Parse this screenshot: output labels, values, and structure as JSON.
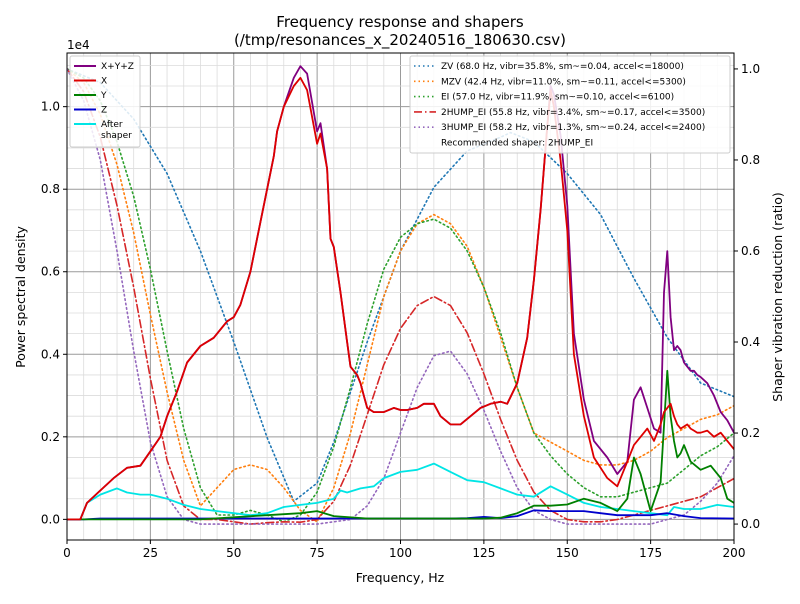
{
  "chart_data": {
    "type": "line",
    "title": "Frequency response and shapers\n(/tmp/resonances_x_20240516_180630.csv)",
    "title_lines": [
      "Frequency response and shapers",
      "(/tmp/resonances_x_20240516_180630.csv)"
    ],
    "xlabel": "Frequency, Hz",
    "ylabel": "Power spectral density",
    "y2label": "Shaper vibration reduction (ratio)",
    "y_offset_text": "1e4",
    "xlim": [
      0,
      200
    ],
    "ylim": [
      -0.05,
      1.13
    ],
    "y2lim": [
      -0.035,
      1.035
    ],
    "x_ticks": [
      0,
      25,
      50,
      75,
      100,
      125,
      150,
      175,
      200
    ],
    "y_ticks": [
      0.0,
      0.2,
      0.4,
      0.6,
      0.8,
      1.0
    ],
    "y_tick_labels": [
      "0.0",
      "0.2",
      "0.4",
      "0.6",
      "0.8",
      "1.0"
    ],
    "y2_ticks": [
      0.0,
      0.2,
      0.4,
      0.6,
      0.8,
      1.0
    ],
    "y2_tick_labels": [
      "0.0",
      "0.2",
      "0.4",
      "0.6",
      "0.8",
      "1.0"
    ],
    "grid": true,
    "legend_left_placement": "top-left",
    "legend_right_placement": "top-right",
    "psd_series": [
      {
        "name": "X+Y+Z",
        "color": "#800080",
        "style": "solid",
        "x": [
          0,
          4,
          6,
          10,
          14,
          18,
          22,
          25,
          28,
          30,
          33,
          36,
          40,
          44,
          48,
          50,
          52,
          55,
          58,
          60,
          62,
          63,
          65,
          68,
          70,
          72,
          75,
          76,
          78,
          79,
          80,
          82,
          84,
          85,
          86,
          87,
          88,
          89,
          90,
          92,
          95,
          98,
          100,
          102,
          105,
          107,
          110,
          112,
          115,
          118,
          121,
          124,
          127,
          130,
          132,
          135,
          138,
          140,
          142,
          144,
          145,
          146,
          148,
          150,
          152,
          155,
          158,
          162,
          165,
          168,
          170,
          172,
          174,
          176,
          178,
          179,
          180,
          181,
          182,
          183,
          184,
          185,
          186,
          187,
          188,
          189,
          190,
          192,
          194,
          196,
          198,
          200
        ],
        "y": [
          0,
          0,
          0.04,
          0.07,
          0.1,
          0.125,
          0.13,
          0.165,
          0.2,
          0.25,
          0.31,
          0.38,
          0.42,
          0.44,
          0.48,
          0.49,
          0.52,
          0.6,
          0.72,
          0.8,
          0.88,
          0.94,
          1.0,
          1.07,
          1.098,
          1.08,
          0.94,
          0.96,
          0.85,
          0.68,
          0.66,
          0.55,
          0.43,
          0.37,
          0.36,
          0.35,
          0.33,
          0.3,
          0.27,
          0.26,
          0.26,
          0.27,
          0.265,
          0.265,
          0.27,
          0.28,
          0.28,
          0.25,
          0.23,
          0.23,
          0.25,
          0.27,
          0.28,
          0.285,
          0.28,
          0.33,
          0.44,
          0.58,
          0.75,
          0.95,
          1.05,
          1.03,
          0.93,
          0.76,
          0.45,
          0.29,
          0.19,
          0.15,
          0.11,
          0.14,
          0.29,
          0.32,
          0.27,
          0.22,
          0.21,
          0.55,
          0.65,
          0.49,
          0.41,
          0.42,
          0.41,
          0.38,
          0.37,
          0.36,
          0.36,
          0.35,
          0.345,
          0.33,
          0.3,
          0.26,
          0.24,
          0.21
        ]
      },
      {
        "name": "X",
        "color": "#dd0000",
        "style": "solid",
        "x": [
          0,
          4,
          6,
          10,
          14,
          18,
          22,
          25,
          28,
          30,
          33,
          36,
          40,
          44,
          48,
          50,
          52,
          55,
          58,
          60,
          62,
          63,
          65,
          68,
          70,
          72,
          75,
          76,
          78,
          79,
          80,
          82,
          84,
          85,
          86,
          87,
          88,
          89,
          90,
          92,
          95,
          98,
          100,
          102,
          105,
          107,
          110,
          112,
          115,
          118,
          121,
          124,
          127,
          130,
          132,
          135,
          138,
          140,
          142,
          144,
          145,
          146,
          148,
          150,
          152,
          155,
          158,
          162,
          165,
          168,
          170,
          172,
          174,
          176,
          178,
          179,
          180,
          181,
          182,
          183,
          184,
          185,
          186,
          187,
          188,
          189,
          190,
          192,
          194,
          196,
          198,
          200
        ],
        "y": [
          0,
          0,
          0.04,
          0.07,
          0.1,
          0.125,
          0.13,
          0.165,
          0.2,
          0.25,
          0.31,
          0.38,
          0.42,
          0.44,
          0.48,
          0.49,
          0.52,
          0.6,
          0.72,
          0.8,
          0.88,
          0.94,
          1.0,
          1.05,
          1.07,
          1.04,
          0.91,
          0.935,
          0.85,
          0.68,
          0.66,
          0.55,
          0.43,
          0.37,
          0.36,
          0.35,
          0.33,
          0.3,
          0.27,
          0.26,
          0.26,
          0.27,
          0.265,
          0.265,
          0.27,
          0.28,
          0.28,
          0.25,
          0.23,
          0.23,
          0.25,
          0.27,
          0.28,
          0.285,
          0.28,
          0.33,
          0.44,
          0.58,
          0.75,
          0.95,
          1.04,
          1.0,
          0.87,
          0.7,
          0.4,
          0.25,
          0.15,
          0.1,
          0.08,
          0.14,
          0.18,
          0.2,
          0.22,
          0.19,
          0.23,
          0.26,
          0.27,
          0.28,
          0.25,
          0.23,
          0.22,
          0.225,
          0.23,
          0.22,
          0.215,
          0.21,
          0.21,
          0.215,
          0.2,
          0.21,
          0.19,
          0.17
        ]
      },
      {
        "name": "Y",
        "color": "#008000",
        "style": "solid",
        "x": [
          0,
          5,
          10,
          20,
          40,
          60,
          70,
          75,
          80,
          90,
          100,
          110,
          120,
          125,
          130,
          135,
          140,
          145,
          150,
          155,
          160,
          165,
          168,
          170,
          172,
          175,
          178,
          180,
          181,
          182,
          183,
          184,
          185,
          187,
          190,
          193,
          196,
          198,
          200
        ],
        "y": [
          0,
          0,
          0,
          0,
          0,
          0.01,
          0.015,
          0.02,
          0.008,
          0.002,
          0.002,
          0.002,
          0.002,
          0.002,
          0.004,
          0.015,
          0.033,
          0.033,
          0.036,
          0.05,
          0.04,
          0.02,
          0.05,
          0.15,
          0.11,
          0.02,
          0.09,
          0.36,
          0.25,
          0.19,
          0.15,
          0.16,
          0.18,
          0.14,
          0.12,
          0.13,
          0.1,
          0.05,
          0.04
        ]
      },
      {
        "name": "Z",
        "color": "#0000cc",
        "style": "solid",
        "x": [
          0,
          5,
          10,
          40,
          100,
          110,
          115,
          120,
          125,
          130,
          135,
          140,
          145,
          150,
          155,
          160,
          165,
          170,
          175,
          180,
          185,
          190,
          200
        ],
        "y": [
          0,
          0,
          0.002,
          0.002,
          0.002,
          0.002,
          0.002,
          0.003,
          0.006,
          0.003,
          0.008,
          0.022,
          0.02,
          0.02,
          0.02,
          0.015,
          0.01,
          0.01,
          0.01,
          0.015,
          0.008,
          0.003,
          0.002
        ]
      },
      {
        "name": "After\nshaper",
        "color": "#00e5e5",
        "style": "solid",
        "x": [
          0,
          4,
          6,
          10,
          15,
          18,
          22,
          25,
          30,
          35,
          40,
          45,
          50,
          55,
          60,
          65,
          70,
          75,
          80,
          82,
          84,
          88,
          92,
          95,
          100,
          105,
          110,
          115,
          120,
          125,
          130,
          135,
          140,
          145,
          150,
          155,
          160,
          165,
          170,
          175,
          180,
          182,
          185,
          190,
          195,
          200
        ],
        "y": [
          0,
          0,
          0.04,
          0.06,
          0.075,
          0.065,
          0.06,
          0.06,
          0.05,
          0.035,
          0.025,
          0.02,
          0.015,
          0.01,
          0.015,
          0.03,
          0.035,
          0.04,
          0.05,
          0.07,
          0.065,
          0.075,
          0.08,
          0.1,
          0.115,
          0.12,
          0.135,
          0.115,
          0.095,
          0.09,
          0.075,
          0.06,
          0.055,
          0.08,
          0.06,
          0.04,
          0.03,
          0.025,
          0.02,
          0.015,
          0.01,
          0.03,
          0.025,
          0.025,
          0.035,
          0.03
        ]
      }
    ],
    "shaper_series": [
      {
        "name": "ZV (68.0 Hz, vibr=35.8%, sm~=0.04, accel<=18000)",
        "color": "#1f77b4",
        "style": "dotted",
        "x": [
          0,
          10,
          20,
          30,
          40,
          50,
          60,
          68,
          75,
          80,
          90,
          100,
          110,
          120,
          130,
          133,
          140,
          150,
          160,
          170,
          180,
          190,
          200
        ],
        "y": [
          1.0,
          0.97,
          0.89,
          0.77,
          0.6,
          0.4,
          0.19,
          0.05,
          0.09,
          0.18,
          0.4,
          0.6,
          0.74,
          0.82,
          0.85,
          0.86,
          0.84,
          0.77,
          0.68,
          0.54,
          0.41,
          0.31,
          0.28
        ]
      },
      {
        "name": "MZV (42.4 Hz, vibr=11.0%, sm~=0.11, accel<=5300)",
        "color": "#ff7f0e",
        "style": "dotted",
        "x": [
          0,
          5,
          10,
          15,
          20,
          25,
          30,
          35,
          40,
          45,
          50,
          55,
          60,
          65,
          70,
          75,
          80,
          85,
          90,
          95,
          100,
          105,
          110,
          115,
          120,
          125,
          130,
          135,
          140,
          145,
          150,
          155,
          160,
          165,
          170,
          175,
          180,
          185,
          190,
          195,
          200
        ],
        "y": [
          1.0,
          0.97,
          0.9,
          0.79,
          0.64,
          0.46,
          0.29,
          0.14,
          0.04,
          0.08,
          0.12,
          0.13,
          0.12,
          0.08,
          0.03,
          0.005,
          0.08,
          0.2,
          0.35,
          0.5,
          0.6,
          0.66,
          0.68,
          0.66,
          0.61,
          0.52,
          0.41,
          0.3,
          0.2,
          0.18,
          0.16,
          0.14,
          0.13,
          0.13,
          0.14,
          0.16,
          0.19,
          0.21,
          0.23,
          0.24,
          0.26
        ]
      },
      {
        "name": "EI (57.0 Hz, vibr=11.9%, sm~=0.10, accel<=6100)",
        "color": "#2ca02c",
        "style": "dotted",
        "x": [
          0,
          5,
          10,
          15,
          20,
          25,
          30,
          35,
          40,
          45,
          50,
          55,
          60,
          65,
          70,
          75,
          80,
          85,
          90,
          95,
          100,
          105,
          110,
          115,
          120,
          125,
          130,
          135,
          140,
          145,
          150,
          155,
          160,
          165,
          170,
          175,
          180,
          185,
          190,
          195,
          200
        ],
        "y": [
          1.0,
          0.98,
          0.93,
          0.84,
          0.72,
          0.56,
          0.38,
          0.21,
          0.08,
          0.02,
          0.02,
          0.03,
          0.02,
          0.005,
          0.02,
          0.07,
          0.17,
          0.3,
          0.44,
          0.56,
          0.63,
          0.66,
          0.67,
          0.65,
          0.6,
          0.52,
          0.42,
          0.3,
          0.2,
          0.15,
          0.11,
          0.08,
          0.06,
          0.06,
          0.07,
          0.08,
          0.09,
          0.12,
          0.15,
          0.17,
          0.2
        ]
      },
      {
        "name": "2HUMP_EI (55.8 Hz, vibr=3.4%, sm~=0.17, accel<=3500)",
        "color": "#d62728",
        "style": "dashdot",
        "x": [
          0,
          5,
          10,
          15,
          20,
          25,
          30,
          35,
          40,
          45,
          50,
          55,
          60,
          65,
          70,
          75,
          80,
          85,
          90,
          95,
          100,
          105,
          110,
          115,
          120,
          125,
          130,
          135,
          140,
          145,
          150,
          155,
          160,
          165,
          170,
          175,
          180,
          185,
          190,
          195,
          200
        ],
        "y": [
          1.0,
          0.95,
          0.85,
          0.7,
          0.52,
          0.32,
          0.14,
          0.04,
          0.01,
          0.01,
          0.005,
          0.0,
          0.003,
          0.005,
          0.004,
          0.01,
          0.05,
          0.13,
          0.24,
          0.35,
          0.43,
          0.48,
          0.5,
          0.48,
          0.42,
          0.33,
          0.23,
          0.14,
          0.07,
          0.03,
          0.01,
          0.005,
          0.005,
          0.01,
          0.02,
          0.03,
          0.04,
          0.05,
          0.06,
          0.08,
          0.1
        ]
      },
      {
        "name": "3HUMP_EI (58.2 Hz, vibr=1.3%, sm~=0.24, accel<=2400)",
        "color": "#9467bd",
        "style": "dotted",
        "x": [
          0,
          5,
          10,
          15,
          20,
          25,
          30,
          35,
          40,
          45,
          50,
          55,
          60,
          65,
          70,
          75,
          80,
          85,
          90,
          95,
          100,
          105,
          110,
          115,
          120,
          125,
          130,
          135,
          140,
          145,
          150,
          155,
          160,
          165,
          170,
          175,
          180,
          185,
          190,
          195,
          200
        ],
        "y": [
          1.0,
          0.93,
          0.8,
          0.6,
          0.38,
          0.18,
          0.06,
          0.01,
          0.0,
          0.0,
          0.0,
          0.0,
          0.0,
          0.0,
          0.0,
          0.0,
          0.005,
          0.01,
          0.04,
          0.1,
          0.2,
          0.3,
          0.37,
          0.38,
          0.33,
          0.25,
          0.16,
          0.08,
          0.03,
          0.01,
          0.0,
          0.0,
          0.0,
          0.0,
          0.0,
          0.0,
          0.01,
          0.02,
          0.05,
          0.09,
          0.15
        ]
      }
    ],
    "legend_extra_text": "Recommended shaper: 2HUMP_EI"
  }
}
